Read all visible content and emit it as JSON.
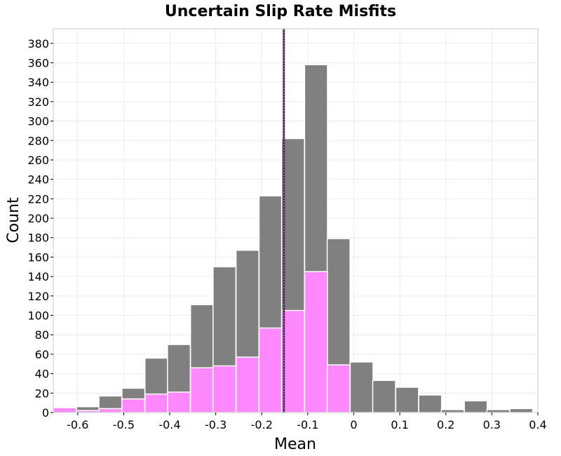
{
  "chart_data": {
    "type": "bar",
    "title": "Uncertain Slip Rate Misfits",
    "xlabel": "Mean",
    "ylabel": "Count",
    "xlim": [
      -0.653,
      0.4
    ],
    "ylim": [
      0,
      395
    ],
    "bin_width": 0.0496,
    "x_ticks": [
      "-0.6",
      "-0.5",
      "-0.4",
      "-0.3",
      "-0.2",
      "-0.1",
      "0",
      "0.1",
      "0.2",
      "0.3",
      "0.4"
    ],
    "x_tick_values": [
      -0.6,
      -0.5,
      -0.4,
      -0.3,
      -0.2,
      -0.1,
      0,
      0.1,
      0.2,
      0.3,
      0.4
    ],
    "y_ticks": [
      "0",
      "20",
      "40",
      "60",
      "80",
      "100",
      "120",
      "140",
      "160",
      "180",
      "200",
      "220",
      "240",
      "260",
      "280",
      "300",
      "320",
      "340",
      "360",
      "380"
    ],
    "y_tick_values": [
      0,
      20,
      40,
      60,
      80,
      100,
      120,
      140,
      160,
      180,
      200,
      220,
      240,
      260,
      280,
      300,
      320,
      340,
      360,
      380
    ],
    "grid": true,
    "mean_line_x": -0.152,
    "series": [
      {
        "color": "#808080",
        "bin_centers": [
          -0.628,
          -0.578,
          -0.529,
          -0.479,
          -0.429,
          -0.38,
          -0.33,
          -0.281,
          -0.231,
          -0.181,
          -0.132,
          -0.082,
          -0.033,
          0.017,
          0.066,
          0.116,
          0.166,
          0.215,
          0.265,
          0.314,
          0.364
        ],
        "values": [
          4,
          6,
          17,
          25,
          56,
          70,
          111,
          150,
          167,
          223,
          282,
          358,
          179,
          52,
          33,
          26,
          18,
          3,
          12,
          3,
          4
        ]
      },
      {
        "color": "#ff88ff",
        "bin_centers": [
          -0.628,
          -0.578,
          -0.529,
          -0.479,
          -0.429,
          -0.38,
          -0.33,
          -0.281,
          -0.231,
          -0.181,
          -0.132,
          -0.082,
          -0.033
        ],
        "values": [
          5,
          2,
          4,
          14,
          19,
          21,
          46,
          48,
          57,
          87,
          105,
          145,
          49
        ]
      }
    ]
  }
}
